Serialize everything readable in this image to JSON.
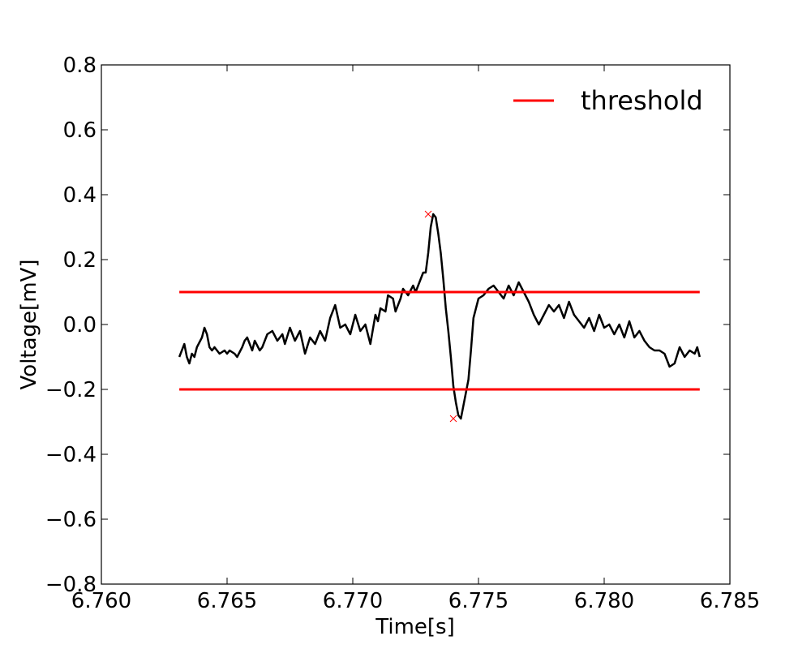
{
  "chart_data": {
    "type": "line",
    "title": "",
    "xlabel": "Time[s]",
    "ylabel": "Voltage[mV]",
    "xlim": [
      6.76,
      6.785
    ],
    "ylim": [
      -0.8,
      0.8
    ],
    "xticks": [
      6.76,
      6.765,
      6.77,
      6.775,
      6.78,
      6.785
    ],
    "xtick_labels": [
      "6.760",
      "6.765",
      "6.770",
      "6.775",
      "6.780",
      "6.785"
    ],
    "yticks": [
      -0.8,
      -0.6,
      -0.4,
      -0.2,
      0.0,
      0.2,
      0.4,
      0.6,
      0.8
    ],
    "ytick_labels": [
      "−0.8",
      "−0.6",
      "−0.4",
      "−0.2",
      "0.0",
      "0.2",
      "0.4",
      "0.6",
      "0.8"
    ],
    "grid": false,
    "legend": {
      "position": "top-right",
      "entries": [
        {
          "label": "threshold",
          "color": "#ff0000"
        }
      ]
    },
    "colors": {
      "signal": "#000000",
      "threshold": "#ff0000",
      "marker": "#ff0000"
    },
    "series": [
      {
        "name": "",
        "role": "signal",
        "x": [
          6.7631,
          6.7632,
          6.7633,
          6.7634,
          6.7635,
          6.7636,
          6.7637,
          6.7638,
          6.764,
          6.7641,
          6.7642,
          6.7643,
          6.7644,
          6.7645,
          6.7646,
          6.7647,
          6.7649,
          6.765,
          6.7651,
          6.7653,
          6.7654,
          6.7656,
          6.7657,
          6.7658,
          6.766,
          6.7661,
          6.7663,
          6.7664,
          6.7666,
          6.7668,
          6.767,
          6.7672,
          6.7673,
          6.7675,
          6.7677,
          6.7679,
          6.7681,
          6.7683,
          6.7685,
          6.7687,
          6.7689,
          6.7691,
          6.7693,
          6.7695,
          6.7697,
          6.7699,
          6.7701,
          6.7703,
          6.7705,
          6.7707,
          6.7709,
          6.771,
          6.7711,
          6.7713,
          6.7714,
          6.7716,
          6.7717,
          6.7719,
          6.772,
          6.7722,
          6.7724,
          6.7725,
          6.7727,
          6.7728,
          6.7729,
          6.773,
          6.7731,
          6.7732,
          6.7733,
          6.7734,
          6.7735,
          6.7736,
          6.7737,
          6.7738,
          6.7739,
          6.774,
          6.7741,
          6.7742,
          6.7743,
          6.7744,
          6.7745,
          6.7746,
          6.7747,
          6.7748,
          6.775,
          6.7752,
          6.7754,
          6.7756,
          6.7758,
          6.776,
          6.7762,
          6.7764,
          6.7766,
          6.7768,
          6.777,
          6.7772,
          6.7774,
          6.7776,
          6.7778,
          6.778,
          6.7782,
          6.7784,
          6.7786,
          6.7788,
          6.779,
          6.7792,
          6.7794,
          6.7796,
          6.7798,
          6.78,
          6.7802,
          6.7804,
          6.7806,
          6.7808,
          6.781,
          6.7812,
          6.7814,
          6.7816,
          6.7818,
          6.782,
          6.7822,
          6.7824,
          6.7826,
          6.7828,
          6.783,
          6.7832,
          6.7834,
          6.7836,
          6.7837,
          6.7838
        ],
        "y": [
          -0.1,
          -0.08,
          -0.06,
          -0.1,
          -0.12,
          -0.09,
          -0.1,
          -0.07,
          -0.04,
          -0.01,
          -0.03,
          -0.07,
          -0.08,
          -0.07,
          -0.08,
          -0.09,
          -0.08,
          -0.09,
          -0.08,
          -0.09,
          -0.1,
          -0.07,
          -0.05,
          -0.04,
          -0.08,
          -0.05,
          -0.08,
          -0.07,
          -0.03,
          -0.02,
          -0.05,
          -0.03,
          -0.06,
          -0.01,
          -0.05,
          -0.02,
          -0.09,
          -0.04,
          -0.06,
          -0.02,
          -0.05,
          0.02,
          0.06,
          -0.01,
          0.0,
          -0.03,
          0.03,
          -0.02,
          0.0,
          -0.06,
          0.03,
          0.01,
          0.05,
          0.04,
          0.09,
          0.08,
          0.04,
          0.08,
          0.11,
          0.09,
          0.12,
          0.1,
          0.14,
          0.16,
          0.16,
          0.22,
          0.3,
          0.34,
          0.33,
          0.28,
          0.22,
          0.14,
          0.05,
          -0.02,
          -0.1,
          -0.19,
          -0.24,
          -0.28,
          -0.29,
          -0.25,
          -0.21,
          -0.17,
          -0.08,
          0.02,
          0.08,
          0.09,
          0.11,
          0.12,
          0.1,
          0.08,
          0.12,
          0.09,
          0.13,
          0.1,
          0.07,
          0.03,
          0.0,
          0.03,
          0.06,
          0.04,
          0.06,
          0.02,
          0.07,
          0.03,
          0.01,
          -0.01,
          0.02,
          -0.02,
          0.03,
          -0.01,
          0.0,
          -0.03,
          0.0,
          -0.04,
          0.01,
          -0.04,
          -0.02,
          -0.05,
          -0.07,
          -0.08,
          -0.08,
          -0.09,
          -0.13,
          -0.12,
          -0.07,
          -0.1,
          -0.08,
          -0.09,
          -0.07,
          -0.1
        ]
      },
      {
        "name": "threshold",
        "role": "threshold",
        "x": [
          6.7631,
          6.7838
        ],
        "y": [
          0.1,
          0.1
        ]
      },
      {
        "name": "",
        "role": "threshold",
        "x": [
          6.7631,
          6.7838
        ],
        "y": [
          -0.2,
          -0.2
        ]
      }
    ],
    "markers": [
      {
        "x": 6.773,
        "y": 0.34,
        "symbol": "x"
      },
      {
        "x": 6.774,
        "y": -0.29,
        "symbol": "x"
      }
    ]
  }
}
